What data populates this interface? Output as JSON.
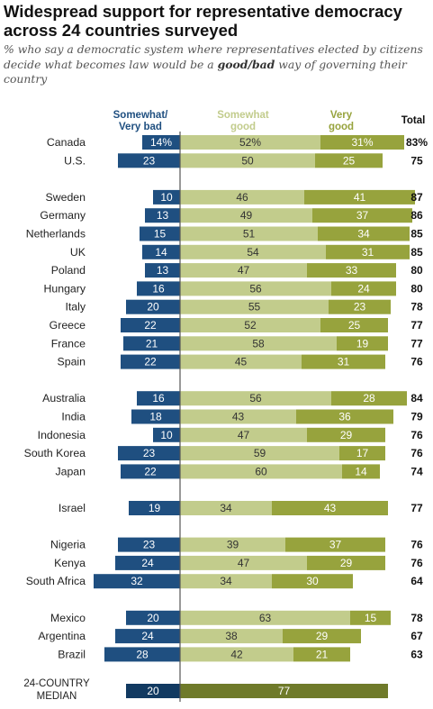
{
  "title": "Widespread support for representative democracy across 24 countries surveyed",
  "subtitle": {
    "before": "% who say a democratic system where representatives elected by citizens decide what becomes law would be a ",
    "emphasis": "good/bad",
    "after": " way of governing their country"
  },
  "colors": {
    "bad": "#1f4f80",
    "somewhat_good": "#c2cc8c",
    "very_good": "#97a33d",
    "median_bad": "#123a61",
    "median_good": "#6f7a2a",
    "axis": "#555555"
  },
  "chart_data": {
    "type": "bar",
    "stacking": "diverging",
    "headers": {
      "bad": [
        "Somewhat/",
        "Very bad"
      ],
      "somewhat_good": [
        "Somewhat",
        "good"
      ],
      "very_good": [
        "Very",
        "good"
      ],
      "total": [
        "Total"
      ]
    },
    "groups": [
      [
        {
          "country": "Canada",
          "bad": "14%",
          "somewhat_good": "52%",
          "very_good": "31%",
          "total": "83%"
        },
        {
          "country": "U.S.",
          "bad": 23,
          "somewhat_good": 50,
          "very_good": 25,
          "total": 75
        }
      ],
      [
        {
          "country": "Sweden",
          "bad": 10,
          "somewhat_good": 46,
          "very_good": 41,
          "total": 87
        },
        {
          "country": "Germany",
          "bad": 13,
          "somewhat_good": 49,
          "very_good": 37,
          "total": 86
        },
        {
          "country": "Netherlands",
          "bad": 15,
          "somewhat_good": 51,
          "very_good": 34,
          "total": 85
        },
        {
          "country": "UK",
          "bad": 14,
          "somewhat_good": 54,
          "very_good": 31,
          "total": 85
        },
        {
          "country": "Poland",
          "bad": 13,
          "somewhat_good": 47,
          "very_good": 33,
          "total": 80
        },
        {
          "country": "Hungary",
          "bad": 16,
          "somewhat_good": 56,
          "very_good": 24,
          "total": 80
        },
        {
          "country": "Italy",
          "bad": 20,
          "somewhat_good": 55,
          "very_good": 23,
          "total": 78
        },
        {
          "country": "Greece",
          "bad": 22,
          "somewhat_good": 52,
          "very_good": 25,
          "total": 77
        },
        {
          "country": "France",
          "bad": 21,
          "somewhat_good": 58,
          "very_good": 19,
          "total": 77
        },
        {
          "country": "Spain",
          "bad": 22,
          "somewhat_good": 45,
          "very_good": 31,
          "total": 76
        }
      ],
      [
        {
          "country": "Australia",
          "bad": 16,
          "somewhat_good": 56,
          "very_good": 28,
          "total": 84
        },
        {
          "country": "India",
          "bad": 18,
          "somewhat_good": 43,
          "very_good": 36,
          "total": 79
        },
        {
          "country": "Indonesia",
          "bad": 10,
          "somewhat_good": 47,
          "very_good": 29,
          "total": 76
        },
        {
          "country": "South Korea",
          "bad": 23,
          "somewhat_good": 59,
          "very_good": 17,
          "total": 76
        },
        {
          "country": "Japan",
          "bad": 22,
          "somewhat_good": 60,
          "very_good": 14,
          "total": 74
        }
      ],
      [
        {
          "country": "Israel",
          "bad": 19,
          "somewhat_good": 34,
          "very_good": 43,
          "total": 77
        }
      ],
      [
        {
          "country": "Nigeria",
          "bad": 23,
          "somewhat_good": 39,
          "very_good": 37,
          "total": 76
        },
        {
          "country": "Kenya",
          "bad": 24,
          "somewhat_good": 47,
          "very_good": 29,
          "total": 76
        },
        {
          "country": "South Africa",
          "bad": 32,
          "somewhat_good": 34,
          "very_good": 30,
          "total": 64
        }
      ],
      [
        {
          "country": "Mexico",
          "bad": 20,
          "somewhat_good": 63,
          "very_good": 15,
          "total": 78
        },
        {
          "country": "Argentina",
          "bad": 24,
          "somewhat_good": 38,
          "very_good": 29,
          "total": 67
        },
        {
          "country": "Brazil",
          "bad": 28,
          "somewhat_good": 42,
          "very_good": 21,
          "total": 63
        }
      ]
    ],
    "median": {
      "label": [
        "24-COUNTRY",
        "MEDIAN"
      ],
      "bad": 20,
      "good": 77
    }
  }
}
